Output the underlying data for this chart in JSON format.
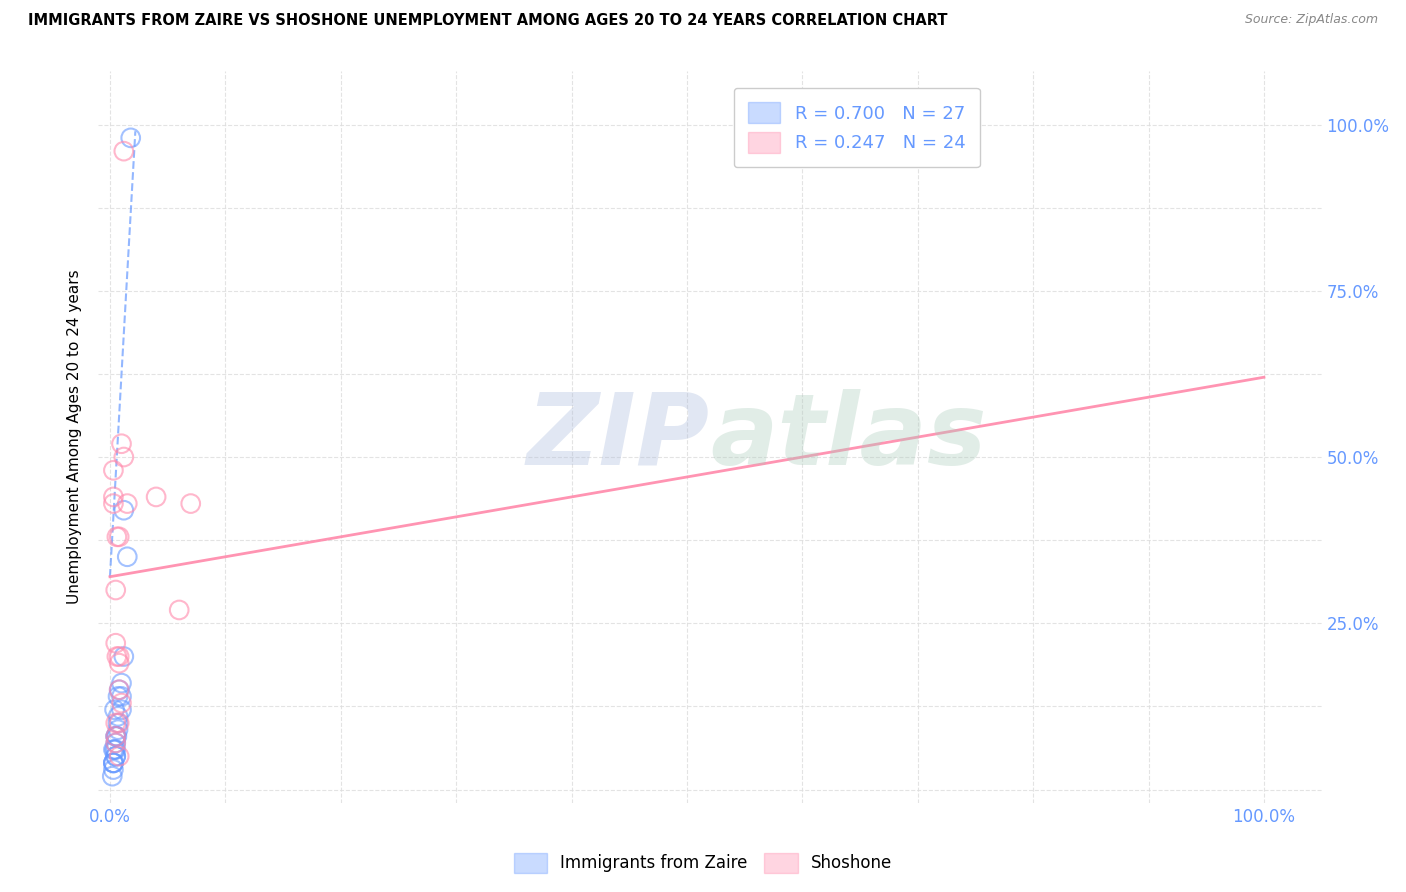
{
  "title": "IMMIGRANTS FROM ZAIRE VS SHOSHONE UNEMPLOYMENT AMONG AGES 20 TO 24 YEARS CORRELATION CHART",
  "source": "Source: ZipAtlas.com",
  "ylabel": "Unemployment Among Ages 20 to 24 years",
  "blue_color": "#6699ff",
  "pink_color": "#ff88aa",
  "legend_blue_label": "Immigrants from Zaire",
  "legend_pink_label": "Shoshone",
  "R_blue": 0.7,
  "N_blue": 27,
  "R_pink": 0.247,
  "N_pink": 24,
  "blue_scatter_x": [
    0.3,
    0.5,
    0.8,
    0.4,
    0.3,
    1.0,
    0.7,
    1.2,
    0.5,
    0.3,
    0.7,
    1.5,
    0.5,
    1.0,
    0.3,
    0.6,
    0.2,
    0.7,
    0.5,
    1.2,
    0.3,
    0.7,
    0.5,
    0.4,
    1.0,
    1.8,
    0.5
  ],
  "blue_scatter_y": [
    4.0,
    8.0,
    15.0,
    12.0,
    6.0,
    16.0,
    10.0,
    42.0,
    5.0,
    4.0,
    14.0,
    35.0,
    7.0,
    12.0,
    3.0,
    8.0,
    2.0,
    9.0,
    6.0,
    20.0,
    4.0,
    11.0,
    8.0,
    6.0,
    14.0,
    98.0,
    5.0
  ],
  "pink_scatter_x": [
    0.3,
    0.6,
    0.8,
    1.2,
    0.6,
    0.8,
    0.3,
    0.5,
    1.0,
    6.0,
    7.0,
    0.8,
    0.5,
    0.8,
    0.5,
    0.8,
    1.0,
    1.2,
    4.0,
    0.5,
    0.8,
    1.5,
    0.3,
    0.5
  ],
  "pink_scatter_y": [
    44.0,
    38.0,
    38.0,
    50.0,
    20.0,
    20.0,
    48.0,
    30.0,
    52.0,
    27.0,
    43.0,
    19.0,
    8.0,
    15.0,
    22.0,
    10.0,
    13.0,
    96.0,
    44.0,
    7.0,
    5.0,
    43.0,
    43.0,
    10.0
  ],
  "blue_line_x": [
    0.0,
    2.2
  ],
  "blue_line_y": [
    32.0,
    99.0
  ],
  "pink_line_x": [
    0.0,
    100.0
  ],
  "pink_line_y": [
    32.0,
    62.0
  ],
  "xlim": [
    -1.0,
    105.0
  ],
  "ylim": [
    -2.0,
    108.0
  ],
  "x_ticks": [
    0,
    10,
    20,
    30,
    40,
    50,
    60,
    70,
    80,
    90,
    100
  ],
  "y_ticks": [
    0,
    12.5,
    25.0,
    37.5,
    50.0,
    62.5,
    75.0,
    87.5,
    100.0
  ],
  "y_tick_labels": [
    "",
    "",
    "25.0%",
    "",
    "50.0%",
    "",
    "75.0%",
    "",
    "100.0%"
  ],
  "background_color": "#ffffff",
  "grid_color": "#dddddd"
}
